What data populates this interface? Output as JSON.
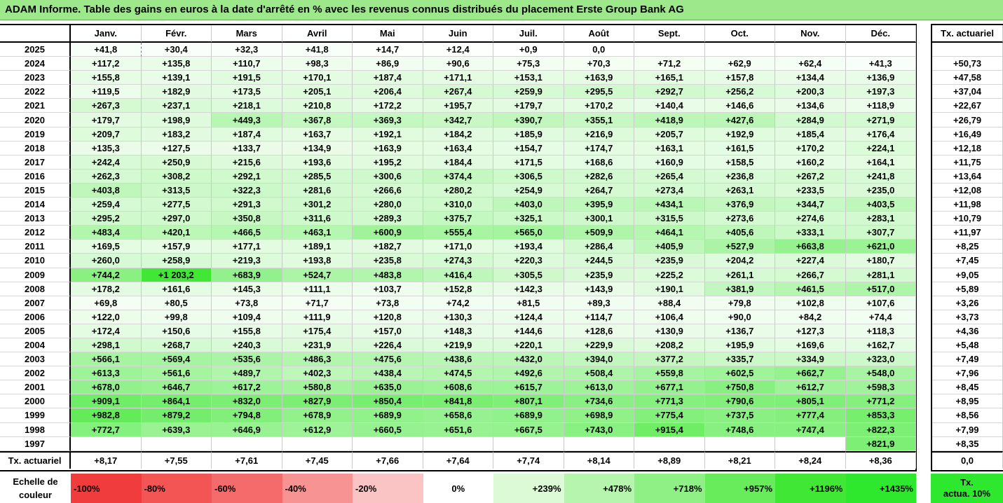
{
  "title": "ADAM Informe. Table des gains en euros à la date d'arrêté en % avec les revenus connus distribués du placement Erste Group Bank AG",
  "chart_data": {
    "type": "table",
    "months": [
      "Janv.",
      "Févr.",
      "Mars",
      "Avril",
      "Mai",
      "Juin",
      "Juil.",
      "Août",
      "Sept.",
      "Oct.",
      "Nov.",
      "Déc."
    ],
    "rate_header": "Tx. actuariel",
    "rows": [
      {
        "year": "2025",
        "values": [
          "+41,8",
          "+30,4",
          "+32,3",
          "+41,8",
          "+14,7",
          "+12,4",
          "+0,9",
          "0,0",
          "",
          "",
          "",
          ""
        ],
        "rate": ""
      },
      {
        "year": "2024",
        "values": [
          "+117,2",
          "+135,8",
          "+110,7",
          "+98,3",
          "+86,9",
          "+90,6",
          "+75,3",
          "+70,3",
          "+71,2",
          "+62,9",
          "+62,4",
          "+41,3"
        ],
        "rate": "+50,73"
      },
      {
        "year": "2023",
        "values": [
          "+155,8",
          "+139,1",
          "+191,5",
          "+170,1",
          "+187,4",
          "+171,1",
          "+153,1",
          "+163,9",
          "+165,1",
          "+157,8",
          "+134,4",
          "+136,9"
        ],
        "rate": "+47,58"
      },
      {
        "year": "2022",
        "values": [
          "+119,5",
          "+182,9",
          "+173,5",
          "+205,1",
          "+206,4",
          "+267,4",
          "+259,9",
          "+295,5",
          "+292,7",
          "+256,2",
          "+200,3",
          "+197,3"
        ],
        "rate": "+37,04"
      },
      {
        "year": "2021",
        "values": [
          "+267,3",
          "+237,1",
          "+218,1",
          "+210,8",
          "+172,2",
          "+195,7",
          "+179,7",
          "+170,2",
          "+140,4",
          "+146,6",
          "+134,6",
          "+118,9"
        ],
        "rate": "+22,67"
      },
      {
        "year": "2020",
        "values": [
          "+179,7",
          "+198,9",
          "+449,3",
          "+367,8",
          "+369,3",
          "+342,7",
          "+390,7",
          "+355,1",
          "+418,9",
          "+427,6",
          "+284,9",
          "+271,9"
        ],
        "rate": "+26,79"
      },
      {
        "year": "2019",
        "values": [
          "+209,7",
          "+183,2",
          "+187,4",
          "+163,7",
          "+192,1",
          "+184,2",
          "+185,9",
          "+216,9",
          "+205,7",
          "+192,9",
          "+185,4",
          "+176,4"
        ],
        "rate": "+16,49"
      },
      {
        "year": "2018",
        "values": [
          "+135,3",
          "+127,5",
          "+133,7",
          "+134,9",
          "+163,9",
          "+163,4",
          "+154,7",
          "+174,7",
          "+163,1",
          "+161,5",
          "+170,2",
          "+224,1"
        ],
        "rate": "+12,18"
      },
      {
        "year": "2017",
        "values": [
          "+242,4",
          "+250,9",
          "+215,6",
          "+193,6",
          "+195,2",
          "+184,4",
          "+171,5",
          "+168,6",
          "+160,9",
          "+158,5",
          "+160,2",
          "+164,1"
        ],
        "rate": "+11,75"
      },
      {
        "year": "2016",
        "values": [
          "+262,3",
          "+308,2",
          "+292,1",
          "+285,5",
          "+300,6",
          "+374,4",
          "+306,5",
          "+282,6",
          "+265,4",
          "+236,8",
          "+267,2",
          "+241,8"
        ],
        "rate": "+13,64"
      },
      {
        "year": "2015",
        "values": [
          "+403,8",
          "+313,5",
          "+322,3",
          "+281,6",
          "+266,6",
          "+280,2",
          "+254,9",
          "+264,7",
          "+273,4",
          "+263,1",
          "+233,5",
          "+235,0"
        ],
        "rate": "+12,08"
      },
      {
        "year": "2014",
        "values": [
          "+259,4",
          "+277,5",
          "+291,3",
          "+301,2",
          "+280,0",
          "+310,0",
          "+403,0",
          "+395,9",
          "+434,1",
          "+376,9",
          "+344,7",
          "+403,5"
        ],
        "rate": "+11,98"
      },
      {
        "year": "2013",
        "values": [
          "+295,2",
          "+297,0",
          "+350,8",
          "+311,6",
          "+289,3",
          "+375,7",
          "+325,1",
          "+300,1",
          "+315,5",
          "+273,6",
          "+274,6",
          "+283,1"
        ],
        "rate": "+10,79"
      },
      {
        "year": "2012",
        "values": [
          "+483,4",
          "+420,1",
          "+466,5",
          "+463,1",
          "+600,9",
          "+555,4",
          "+565,0",
          "+509,9",
          "+464,1",
          "+405,6",
          "+333,1",
          "+307,7"
        ],
        "rate": "+11,97"
      },
      {
        "year": "2011",
        "values": [
          "+169,5",
          "+157,9",
          "+177,1",
          "+189,1",
          "+182,7",
          "+171,0",
          "+193,4",
          "+286,4",
          "+405,9",
          "+527,9",
          "+663,8",
          "+621,0"
        ],
        "rate": "+8,25"
      },
      {
        "year": "2010",
        "values": [
          "+260,0",
          "+258,9",
          "+219,3",
          "+193,8",
          "+235,8",
          "+274,3",
          "+220,3",
          "+244,5",
          "+235,9",
          "+204,2",
          "+227,4",
          "+180,7"
        ],
        "rate": "+7,45"
      },
      {
        "year": "2009",
        "values": [
          "+744,2",
          "+1 203,2",
          "+683,9",
          "+524,7",
          "+483,8",
          "+416,4",
          "+305,5",
          "+235,9",
          "+225,2",
          "+261,1",
          "+266,7",
          "+281,1"
        ],
        "rate": "+9,05"
      },
      {
        "year": "2008",
        "values": [
          "+178,2",
          "+161,6",
          "+145,3",
          "+111,1",
          "+103,7",
          "+152,8",
          "+142,3",
          "+143,9",
          "+190,1",
          "+381,9",
          "+461,5",
          "+517,0"
        ],
        "rate": "+5,89"
      },
      {
        "year": "2007",
        "values": [
          "+69,8",
          "+80,5",
          "+73,8",
          "+71,7",
          "+73,8",
          "+74,2",
          "+81,5",
          "+89,3",
          "+88,4",
          "+79,8",
          "+102,8",
          "+107,6"
        ],
        "rate": "+3,26"
      },
      {
        "year": "2006",
        "values": [
          "+122,0",
          "+99,8",
          "+109,4",
          "+111,9",
          "+120,8",
          "+130,3",
          "+124,4",
          "+114,7",
          "+106,4",
          "+90,0",
          "+84,2",
          "+74,4"
        ],
        "rate": "+3,73"
      },
      {
        "year": "2005",
        "values": [
          "+172,4",
          "+150,6",
          "+155,8",
          "+175,4",
          "+157,0",
          "+148,3",
          "+144,6",
          "+128,6",
          "+130,9",
          "+136,7",
          "+127,3",
          "+118,3"
        ],
        "rate": "+4,36"
      },
      {
        "year": "2004",
        "values": [
          "+298,1",
          "+268,7",
          "+240,3",
          "+231,9",
          "+226,4",
          "+219,9",
          "+220,1",
          "+229,9",
          "+208,2",
          "+195,9",
          "+169,6",
          "+162,7"
        ],
        "rate": "+5,48"
      },
      {
        "year": "2003",
        "values": [
          "+566,1",
          "+569,4",
          "+535,6",
          "+486,3",
          "+475,6",
          "+438,6",
          "+432,0",
          "+394,0",
          "+377,2",
          "+335,7",
          "+334,9",
          "+323,0"
        ],
        "rate": "+7,49"
      },
      {
        "year": "2002",
        "values": [
          "+613,3",
          "+561,6",
          "+489,7",
          "+402,3",
          "+438,4",
          "+474,5",
          "+492,6",
          "+508,4",
          "+559,8",
          "+602,5",
          "+662,7",
          "+548,0"
        ],
        "rate": "+7,96"
      },
      {
        "year": "2001",
        "values": [
          "+678,0",
          "+646,7",
          "+617,2",
          "+580,8",
          "+635,0",
          "+608,6",
          "+615,7",
          "+613,0",
          "+677,1",
          "+750,8",
          "+612,7",
          "+598,3"
        ],
        "rate": "+8,45"
      },
      {
        "year": "2000",
        "values": [
          "+909,1",
          "+864,1",
          "+832,0",
          "+827,9",
          "+850,4",
          "+841,8",
          "+807,1",
          "+734,6",
          "+771,3",
          "+790,6",
          "+805,1",
          "+771,2"
        ],
        "rate": "+8,95"
      },
      {
        "year": "1999",
        "values": [
          "+982,8",
          "+879,2",
          "+794,8",
          "+678,9",
          "+689,9",
          "+658,6",
          "+689,9",
          "+698,9",
          "+775,4",
          "+737,5",
          "+777,4",
          "+853,3"
        ],
        "rate": "+8,56"
      },
      {
        "year": "1998",
        "values": [
          "+772,7",
          "+639,3",
          "+646,9",
          "+612,9",
          "+660,5",
          "+651,6",
          "+667,5",
          "+743,0",
          "+915,4",
          "+748,6",
          "+747,4",
          "+822,3"
        ],
        "rate": "+7,99"
      },
      {
        "year": "1997",
        "values": [
          "",
          "",
          "",
          "",
          "",
          "",
          "",
          "",
          "",
          "",
          "",
          "+821,9"
        ],
        "rate": "+8,35"
      }
    ],
    "footer": {
      "label": "Tx. actuariel",
      "values": [
        "+8,17",
        "+7,55",
        "+7,61",
        "+7,45",
        "+7,66",
        "+7,64",
        "+7,74",
        "+8,14",
        "+8,89",
        "+8,21",
        "+8,24",
        "+8,36"
      ],
      "rate": "0,0"
    },
    "color_scale": {
      "label_line1": "Echelle de",
      "label_line2": "couleur",
      "steps": [
        {
          "label": "-100%",
          "color": "#f03c3c"
        },
        {
          "label": "-80%",
          "color": "#f35454"
        },
        {
          "label": "-60%",
          "color": "#f56a6a"
        },
        {
          "label": "-40%",
          "color": "#f89393"
        },
        {
          "label": "-20%",
          "color": "#fbc4c4"
        },
        {
          "label": "0%",
          "color": "#ffffff"
        },
        {
          "label": "+239%",
          "color": "#dcfad6"
        },
        {
          "label": "+478%",
          "color": "#b6f5ad"
        },
        {
          "label": "+718%",
          "color": "#8ff085"
        },
        {
          "label": "+957%",
          "color": "#68ec5c"
        },
        {
          "label": "+1196%",
          "color": "#40e734"
        },
        {
          "label": "+1435%",
          "color": "#2ee82e"
        }
      ],
      "comparison_line1": "Tx.",
      "comparison_line2": "actua. 10%"
    }
  }
}
